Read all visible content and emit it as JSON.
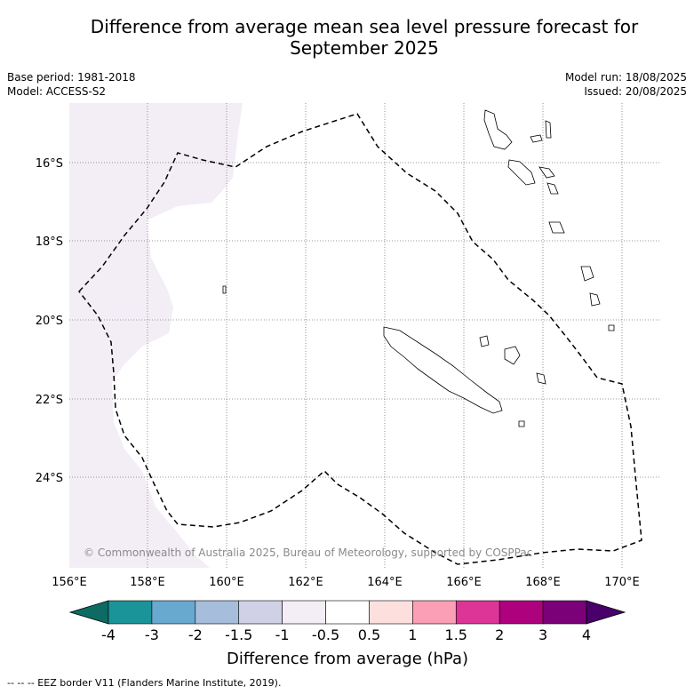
{
  "header": {
    "title_line1": "Difference from average mean sea level pressure forecast for",
    "title_line2": "September 2025",
    "base_period": "Base period: 1981-2018",
    "model": "Model: ACCESS-S2",
    "model_run": "Model run: 18/08/2025",
    "issued": "Issued: 20/08/2025"
  },
  "map": {
    "lon_labels": [
      "156°E",
      "158°E",
      "160°E",
      "162°E",
      "164°E",
      "166°E",
      "168°E",
      "170°E"
    ],
    "lat_labels": [
      "16°S",
      "18°S",
      "20°S",
      "22°S",
      "24°S"
    ],
    "copyright": "© Commonwealth of Australia 2025, Bureau of Meteorology, supported by COSPPac",
    "land_color": "#ffffff",
    "shaded_color": "#f3eef6"
  },
  "colorbar": {
    "title": "Difference from average (hPa)",
    "ticks": [
      "-4",
      "-3",
      "-2",
      "-1.5",
      "-1",
      "-0.5",
      "0.5",
      "1",
      "1.5",
      "2",
      "3",
      "4"
    ],
    "colors": [
      "#0d6b63",
      "#1a9399",
      "#67a9cf",
      "#a6bddb",
      "#d0d1e6",
      "#f3eef6",
      "#ffffff",
      "#fde0dd",
      "#fa9fb5",
      "#dd3497",
      "#ae017e",
      "#7a0177",
      "#49006a"
    ]
  },
  "footer": {
    "legend": "--  --  -- EEZ border V11 (Flanders Marine Institute, 2019)."
  }
}
